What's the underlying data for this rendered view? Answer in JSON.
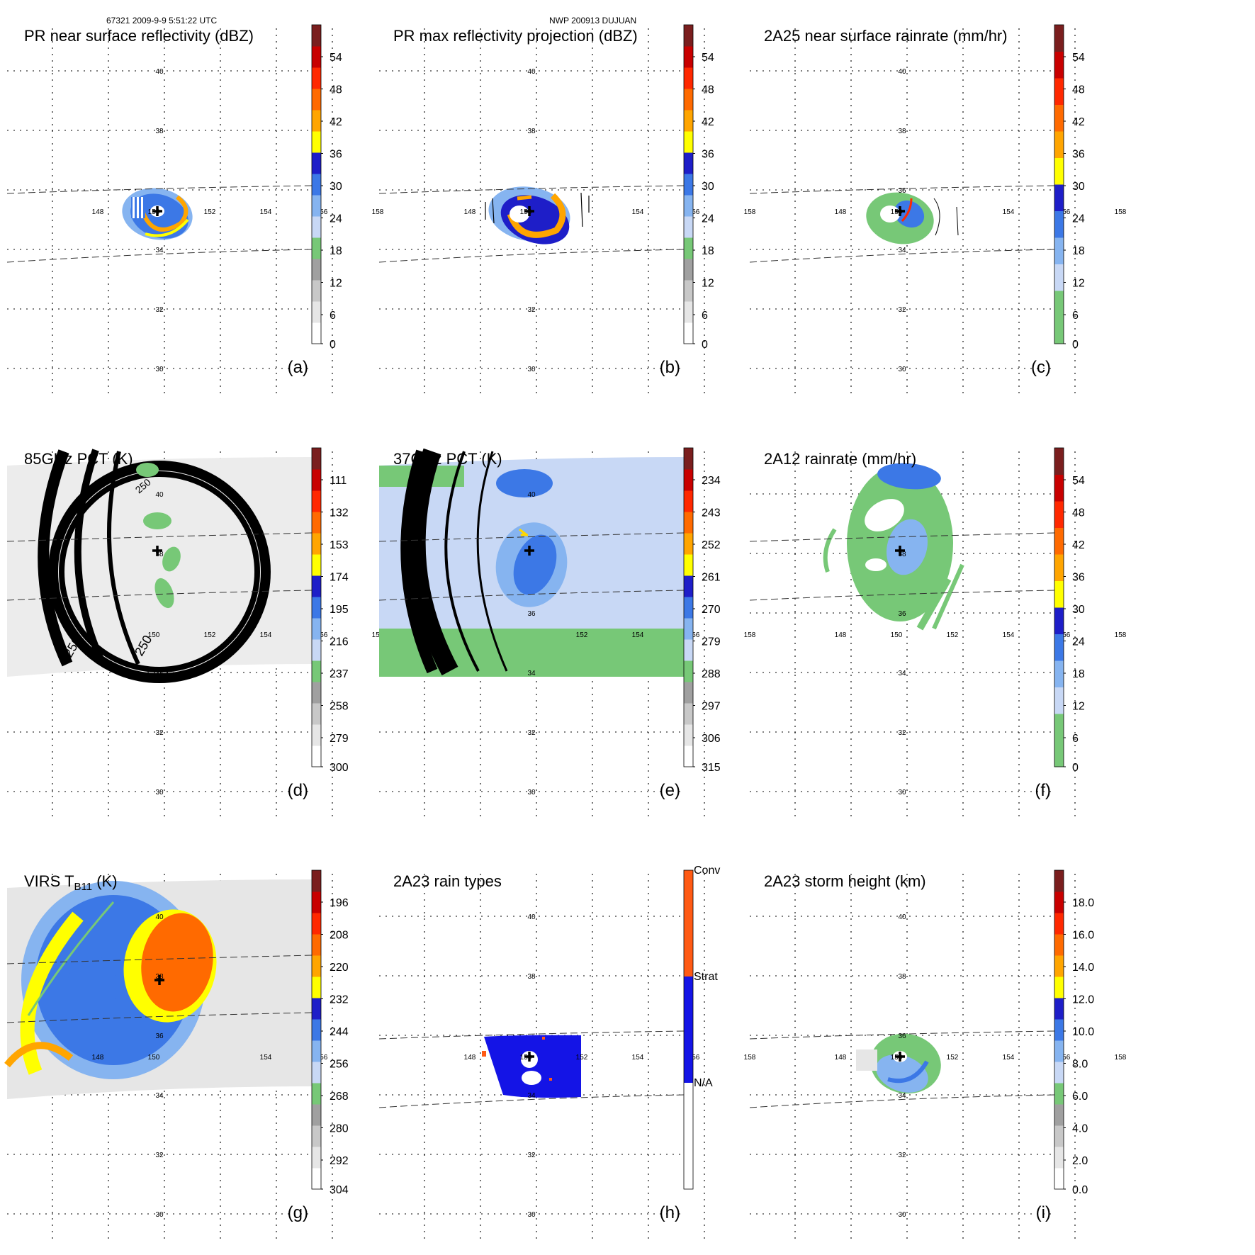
{
  "header": {
    "left": "67321 2009-9-9 5:51:22 UTC",
    "center": "NWP 200913 DUJUAN"
  },
  "lat_labels": [
    "40",
    "38",
    "36",
    "34",
    "32",
    "30"
  ],
  "lon_labels": [
    "148",
    "150",
    "152",
    "154",
    "156",
    "158"
  ],
  "panels": [
    {
      "id": "a",
      "title": "PR near surface reflectivity (dBZ)",
      "letter": "(a)",
      "colors": [
        "#ffffff",
        "#e6e6e6",
        "#c8c8c8",
        "#a0a0a0",
        "#77c877",
        "#c8d8f5",
        "#86b4f0",
        "#3c78e6",
        "#1e1ec8",
        "#ffff00",
        "#ffa500",
        "#ff6a00",
        "#ff2800",
        "#c80000",
        "#7a1e1e"
      ],
      "ticks": [
        "54",
        "48",
        "42",
        "36",
        "30",
        "24",
        "18",
        "12",
        "6",
        "0"
      ],
      "lat_show": [
        "40",
        "38",
        "34",
        "32",
        "30"
      ],
      "lon_show": [
        "148",
        "150",
        "152",
        "154",
        "156",
        "158"
      ],
      "scene": "pr_small"
    },
    {
      "id": "b",
      "title": "PR max reflectivity projection (dBZ)",
      "letter": "(b)",
      "colors": [
        "#ffffff",
        "#e6e6e6",
        "#c8c8c8",
        "#a0a0a0",
        "#77c877",
        "#c8d8f5",
        "#86b4f0",
        "#3c78e6",
        "#1e1ec8",
        "#ffff00",
        "#ffa500",
        "#ff6a00",
        "#ff2800",
        "#c80000",
        "#7a1e1e"
      ],
      "ticks": [
        "54",
        "48",
        "42",
        "36",
        "30",
        "24",
        "18",
        "12",
        "6",
        "0"
      ],
      "lat_show": [
        "40",
        "38",
        "32",
        "30"
      ],
      "lon_show": [
        "148",
        "150",
        "154",
        "156",
        "158"
      ],
      "scene": "pr_max"
    },
    {
      "id": "c",
      "title": "2A25 near surface rainrate (mm/hr)",
      "letter": "(c)",
      "colors": [
        "#77c877",
        "#77c877",
        "#c8d8f5",
        "#86b4f0",
        "#3c78e6",
        "#1e1ec8",
        "#ffff00",
        "#ffa500",
        "#ff6a00",
        "#ff2800",
        "#c80000",
        "#7a1e1e"
      ],
      "ticks": [
        "54",
        "48",
        "42",
        "36",
        "30",
        "24",
        "18",
        "12",
        "6",
        "0"
      ],
      "lat_show": [
        "40",
        "38",
        "36",
        "34",
        "32",
        "30"
      ],
      "lon_show": [
        "148",
        "150",
        "154",
        "156",
        "158"
      ],
      "scene": "rain_small"
    },
    {
      "id": "d",
      "title": "85GHz PCT (K)",
      "letter": "(d)",
      "colors": [
        "#ffffff",
        "#e6e6e6",
        "#c8c8c8",
        "#a0a0a0",
        "#77c877",
        "#c8d8f5",
        "#86b4f0",
        "#3c78e6",
        "#1e1ec8",
        "#ffff00",
        "#ffa500",
        "#ff6a00",
        "#ff2800",
        "#c80000",
        "#7a1e1e"
      ],
      "ticks": [
        "111",
        "132",
        "153",
        "174",
        "195",
        "216",
        "237",
        "258",
        "279",
        "300"
      ],
      "lat_show": [
        "40",
        "38",
        "34",
        "32",
        "30"
      ],
      "lon_show": [
        "150",
        "152",
        "154",
        "156",
        "158"
      ],
      "scene": "pct85",
      "contour_label": "250"
    },
    {
      "id": "e",
      "title": "37GHz PCT (K)",
      "letter": "(e)",
      "colors": [
        "#ffffff",
        "#e6e6e6",
        "#c8c8c8",
        "#a0a0a0",
        "#77c877",
        "#c8d8f5",
        "#86b4f0",
        "#3c78e6",
        "#1e1ec8",
        "#ffff00",
        "#ffa500",
        "#ff6a00",
        "#ff2800",
        "#c80000",
        "#7a1e1e"
      ],
      "ticks": [
        "234",
        "243",
        "252",
        "261",
        "270",
        "279",
        "288",
        "297",
        "306",
        "315"
      ],
      "lat_show": [
        "40",
        "36",
        "34",
        "32",
        "30"
      ],
      "lon_show": [
        "152",
        "154",
        "156",
        "158"
      ],
      "scene": "pct37"
    },
    {
      "id": "f",
      "title": "2A12 rainrate (mm/hr)",
      "letter": "(f)",
      "colors": [
        "#77c877",
        "#77c877",
        "#c8d8f5",
        "#86b4f0",
        "#3c78e6",
        "#1e1ec8",
        "#ffff00",
        "#ffa500",
        "#ff6a00",
        "#ff2800",
        "#c80000",
        "#7a1e1e"
      ],
      "ticks": [
        "54",
        "48",
        "42",
        "36",
        "30",
        "24",
        "18",
        "12",
        "6",
        "0"
      ],
      "lat_show": [
        "38",
        "36",
        "34",
        "32",
        "30"
      ],
      "lon_show": [
        "148",
        "150",
        "152",
        "154",
        "156",
        "158"
      ],
      "scene": "rain_big"
    },
    {
      "id": "g",
      "title_main": "VIRS T",
      "title_sub": "B11",
      "title_end": " (K)",
      "letter": "(g)",
      "colors": [
        "#ffffff",
        "#e6e6e6",
        "#c8c8c8",
        "#a0a0a0",
        "#77c877",
        "#c8d8f5",
        "#86b4f0",
        "#3c78e6",
        "#1e1ec8",
        "#ffff00",
        "#ffa500",
        "#ff6a00",
        "#ff2800",
        "#c80000",
        "#7a1e1e"
      ],
      "ticks": [
        "196",
        "208",
        "220",
        "232",
        "244",
        "256",
        "268",
        "280",
        "292",
        "304"
      ],
      "lat_show": [
        "40",
        "38",
        "36",
        "34",
        "32",
        "30"
      ],
      "lon_show": [
        "148",
        "150",
        "154",
        "156"
      ],
      "scene": "virs"
    },
    {
      "id": "h",
      "title": "2A23 rain types",
      "letter": "(h)",
      "rain_types": [
        "Conv",
        "Strat",
        "N/A"
      ],
      "lat_show": [
        "40",
        "38",
        "34",
        "32",
        "30"
      ],
      "lon_show": [
        "148",
        "150",
        "152",
        "154",
        "156",
        "158"
      ],
      "scene": "types"
    },
    {
      "id": "i",
      "title": "2A23 storm height (km)",
      "letter": "(i)",
      "colors": [
        "#ffffff",
        "#e6e6e6",
        "#c8c8c8",
        "#a0a0a0",
        "#77c877",
        "#c8d8f5",
        "#86b4f0",
        "#3c78e6",
        "#1e1ec8",
        "#ffff00",
        "#ffa500",
        "#ff6a00",
        "#ff2800",
        "#c80000",
        "#7a1e1e"
      ],
      "ticks": [
        "18.0",
        "16.0",
        "14.0",
        "12.0",
        "10.0",
        "8.0",
        "6.0",
        "4.0",
        "2.0",
        "0.0"
      ],
      "lat_show": [
        "40",
        "38",
        "36",
        "34",
        "32",
        "30"
      ],
      "lon_show": [
        "148",
        "150",
        "152",
        "154",
        "156",
        "158"
      ],
      "scene": "height"
    }
  ]
}
